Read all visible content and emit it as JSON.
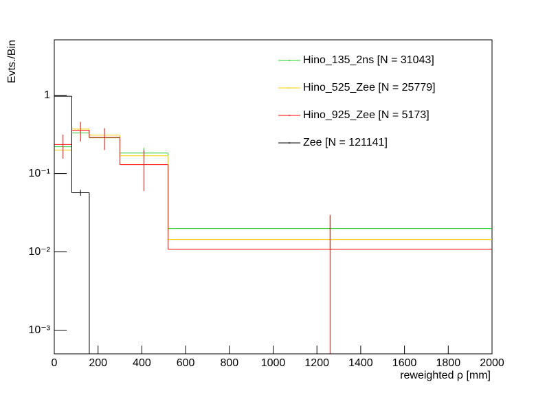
{
  "chart_data": {
    "type": "histogram",
    "xlabel": "reweighted  ρ [mm]",
    "ylabel": "Evts./Bin",
    "bins": [
      0,
      80,
      160,
      300,
      520,
      2000
    ],
    "series": [
      {
        "name": "Hino_135_2ns [N = 31043]",
        "color": "#22cc22",
        "values": [
          0.22,
          0.33,
          0.286,
          0.183,
          0.0199
        ],
        "errors": [
          null,
          null,
          null,
          0.03,
          0.009
        ]
      },
      {
        "name": "Hino_525_Zee [N = 25779]",
        "color": "#ffcc00",
        "values": [
          0.2,
          0.37,
          0.31,
          0.169,
          0.0144
        ],
        "errors": [
          null,
          null,
          null,
          null,
          null
        ]
      },
      {
        "name": "Hino_925_Zee [N = 5173]",
        "color": "#ff0000",
        "values": [
          0.235,
          0.357,
          0.29,
          0.13,
          0.0108
        ],
        "errors": [
          0.08,
          0.1,
          0.09,
          0.07,
          0.019
        ]
      },
      {
        "name": "Zee [N = 121141]",
        "color": "#000000",
        "values": [
          0.97,
          0.057,
          0,
          0,
          0
        ],
        "errors": [
          null,
          0.005,
          null,
          null,
          null
        ]
      }
    ],
    "xlim": [
      0,
      2000
    ],
    "xticks": [
      0,
      200,
      400,
      600,
      800,
      1000,
      1200,
      1400,
      1600,
      1800,
      2000
    ],
    "ylim": [
      0.0005,
      5.1
    ],
    "ylog": true,
    "yticks": [
      {
        "value": 0.001,
        "label": "10⁻³"
      },
      {
        "value": 0.01,
        "label": "10⁻²"
      },
      {
        "value": 0.1,
        "label": "10⁻¹"
      },
      1
    ],
    "legend": "upper right"
  }
}
